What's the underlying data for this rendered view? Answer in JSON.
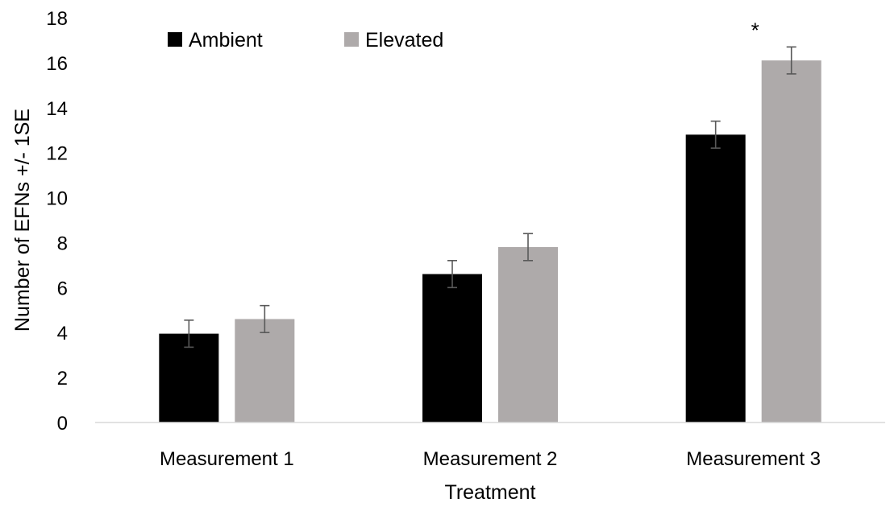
{
  "chart_data": {
    "type": "bar",
    "title": "",
    "xlabel": "Treatment",
    "ylabel": "Number of EFNs +/- 1SE",
    "ylim": [
      0,
      18
    ],
    "yticks": [
      0,
      2,
      4,
      6,
      8,
      10,
      12,
      14,
      16,
      18
    ],
    "categories": [
      "Measurement 1",
      "Measurement 2",
      "Measurement 3"
    ],
    "series": [
      {
        "name": "Ambient",
        "color": "#000000",
        "values": [
          3.95,
          6.6,
          12.8
        ],
        "errors": [
          0.6,
          0.6,
          0.6
        ]
      },
      {
        "name": "Elevated",
        "color": "#aeaaaa",
        "values": [
          4.6,
          7.8,
          16.1
        ],
        "errors": [
          0.6,
          0.6,
          0.6
        ]
      }
    ],
    "annotations": [
      {
        "text": "*",
        "category": "Measurement 3",
        "series": "Elevated"
      }
    ],
    "legend": "top-left",
    "grid": false
  }
}
